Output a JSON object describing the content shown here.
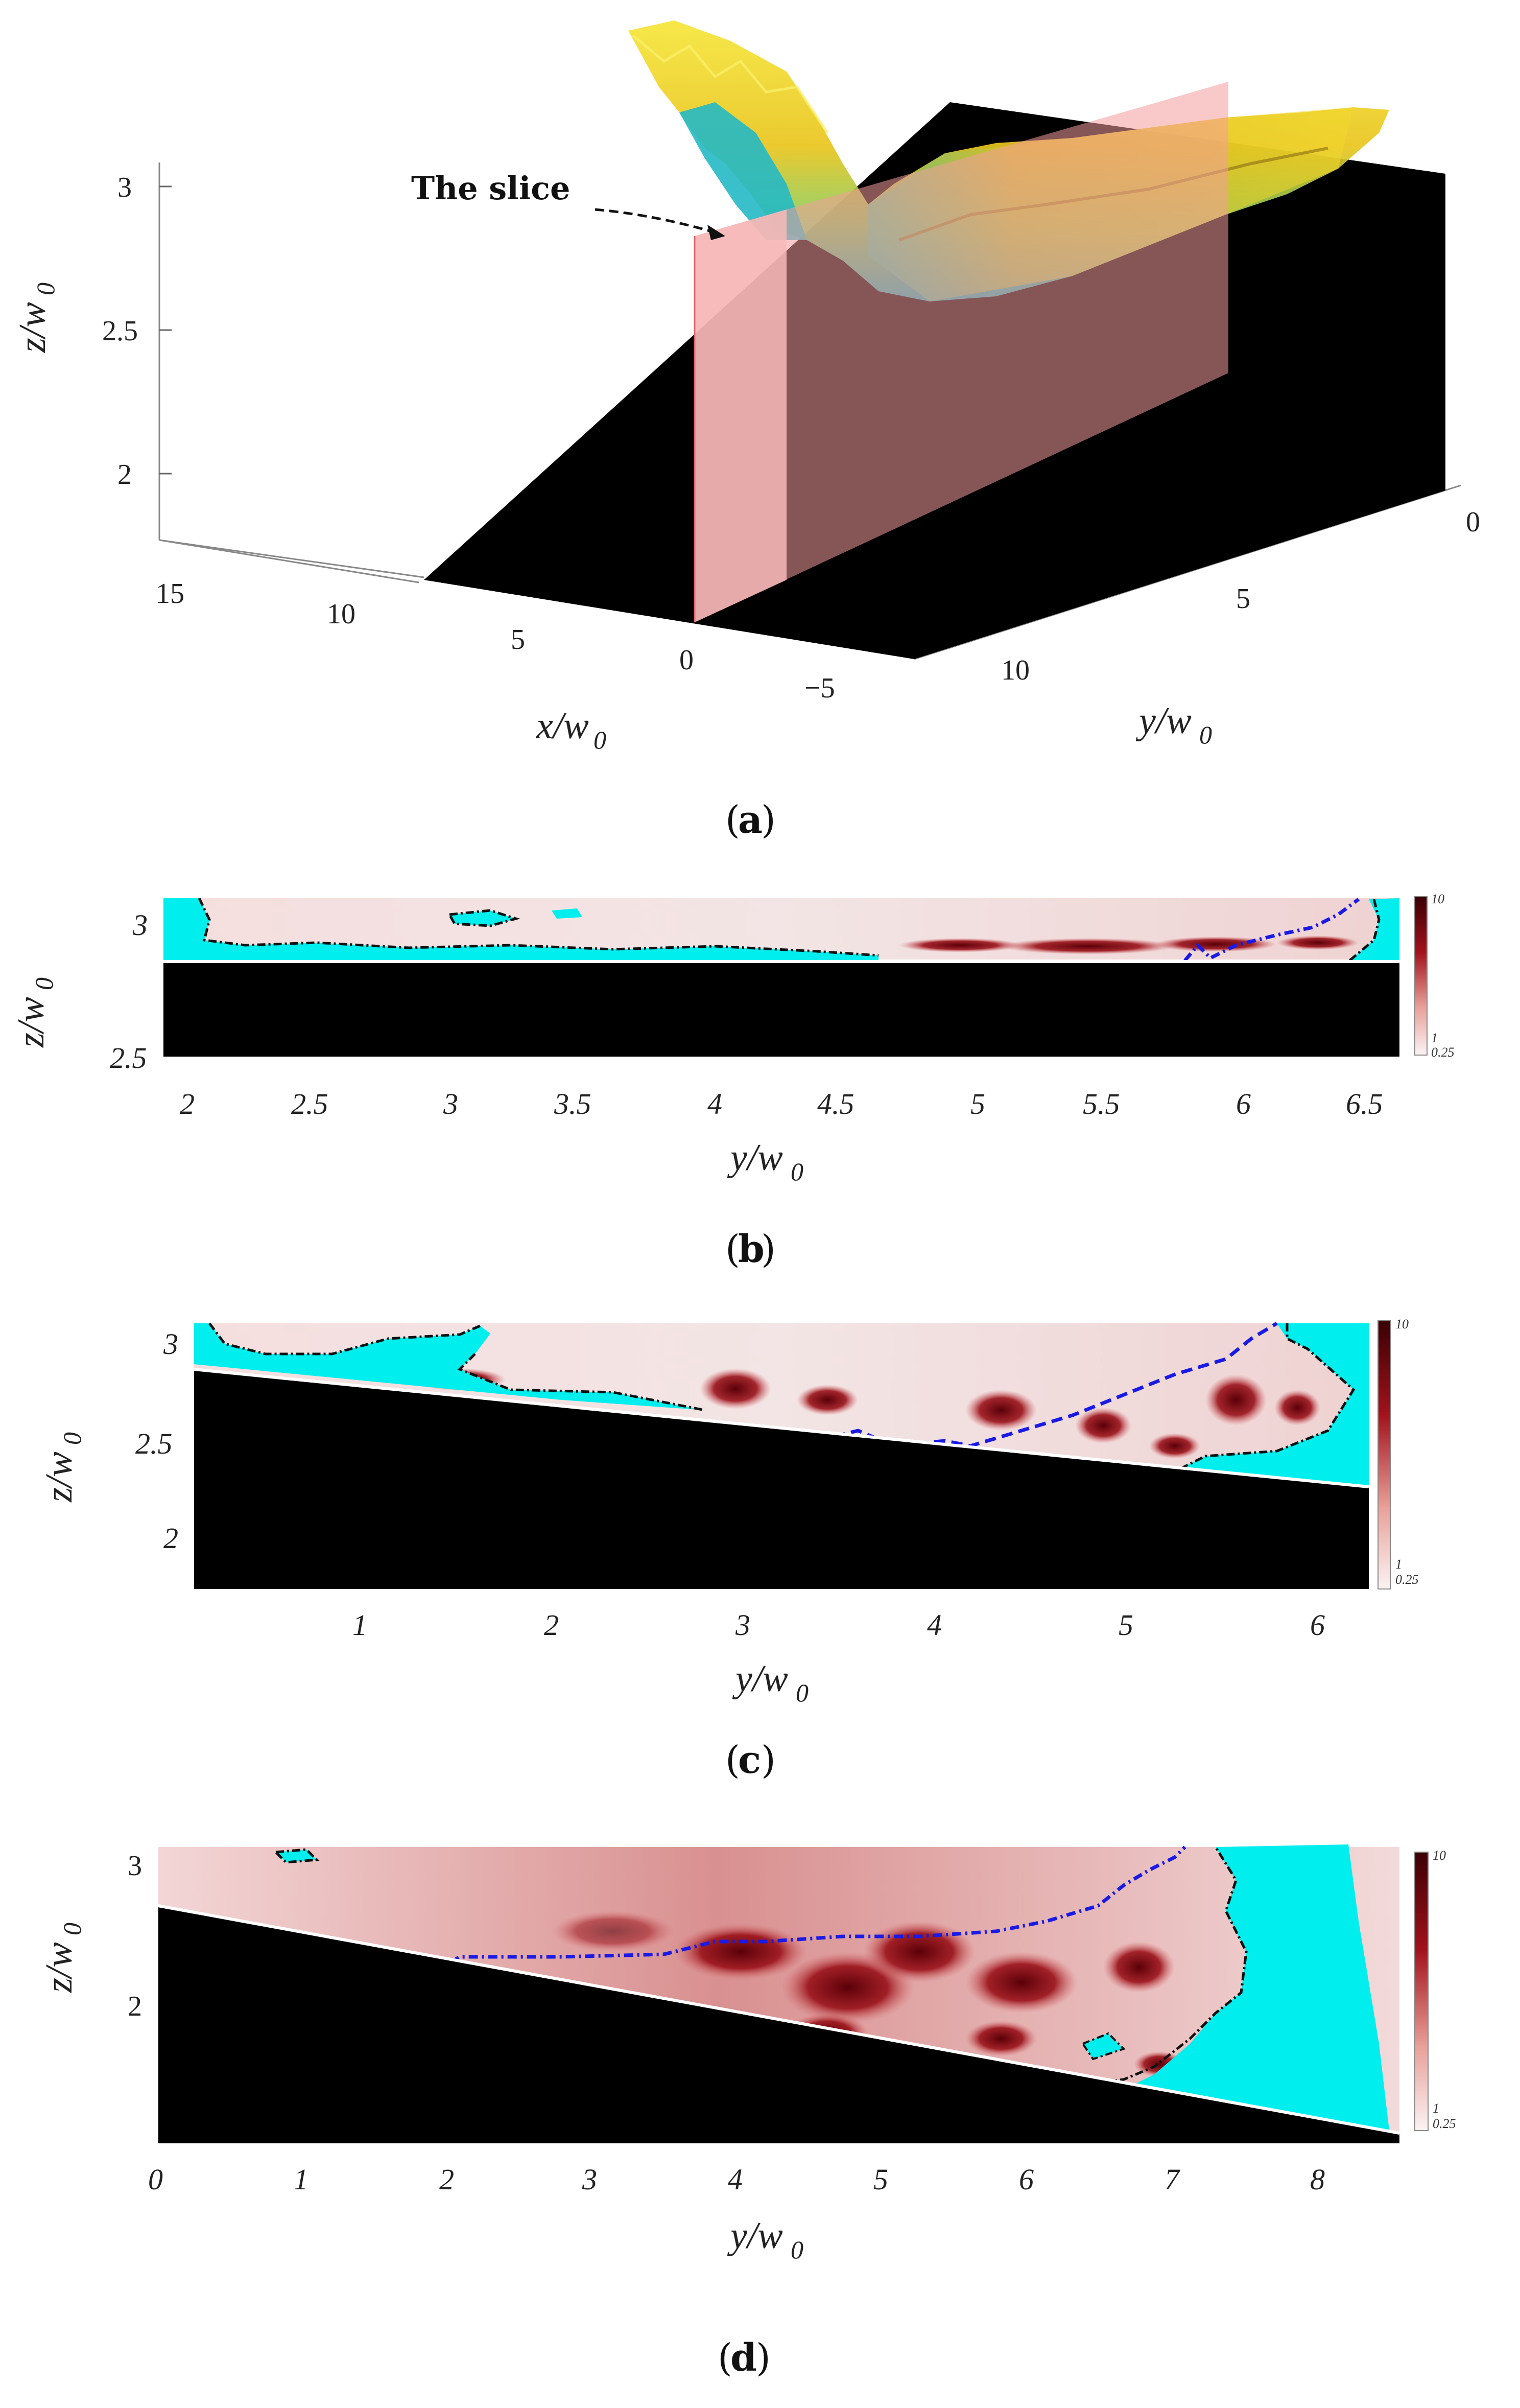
{
  "figure": {
    "panel_a": {
      "caption_letter": "a",
      "annotation": "The slice",
      "z_ticks": [
        "3",
        "2.5",
        "2"
      ],
      "z_label_main": "z/w",
      "z_label_sub": "0",
      "x_ticks": [
        "15",
        "10",
        "5",
        "0",
        "−5"
      ],
      "x_label_main": "x/w",
      "x_label_sub": "0",
      "y_ticks": [
        "0",
        "5",
        "10"
      ],
      "y_label_main": "y/w",
      "y_label_sub": "0",
      "colors": {
        "wall": "#000000",
        "slice": "#f4a8a8",
        "surface_low": "#1bb3c8",
        "surface_high": "#f3d21c"
      }
    },
    "panel_b": {
      "caption_letter": "b",
      "z_ticks": [
        "3",
        "2.5"
      ],
      "y_ticks": [
        "2",
        "2.5",
        "3",
        "3.5",
        "4",
        "4.5",
        "5",
        "5.5",
        "6",
        "6.5"
      ],
      "z_label_main": "z/w",
      "z_label_sub": "0",
      "y_label_main": "y/w",
      "y_label_sub": "0",
      "colorbar": {
        "max": "10",
        "mid": "1",
        "min": "0.25"
      }
    },
    "panel_c": {
      "caption_letter": "c",
      "z_ticks": [
        "3",
        "2.5",
        "2"
      ],
      "y_ticks": [
        "1",
        "2",
        "3",
        "4",
        "5",
        "6"
      ],
      "z_label_main": "z/w",
      "z_label_sub": "0",
      "y_label_main": "y/w",
      "y_label_sub": "0",
      "colorbar": {
        "max": "10",
        "mid": "1",
        "min": "0.25"
      }
    },
    "panel_d": {
      "caption_letter": "d",
      "z_ticks": [
        "3",
        "2"
      ],
      "y_ticks": [
        "0",
        "1",
        "2",
        "3",
        "4",
        "5",
        "6",
        "7",
        "8"
      ],
      "z_label_main": "z/w",
      "z_label_sub": "0",
      "y_label_main": "y/w",
      "y_label_sub": "0",
      "colorbar": {
        "max": "10",
        "mid": "1",
        "min": "0.25"
      }
    },
    "colors": {
      "cyan_region": "#00f0f0",
      "contour": "#111111",
      "interface_line": "#1a1ae6",
      "wall": "#000000",
      "field_low": "#f7e6e6",
      "field_high": "#5a0008"
    }
  }
}
